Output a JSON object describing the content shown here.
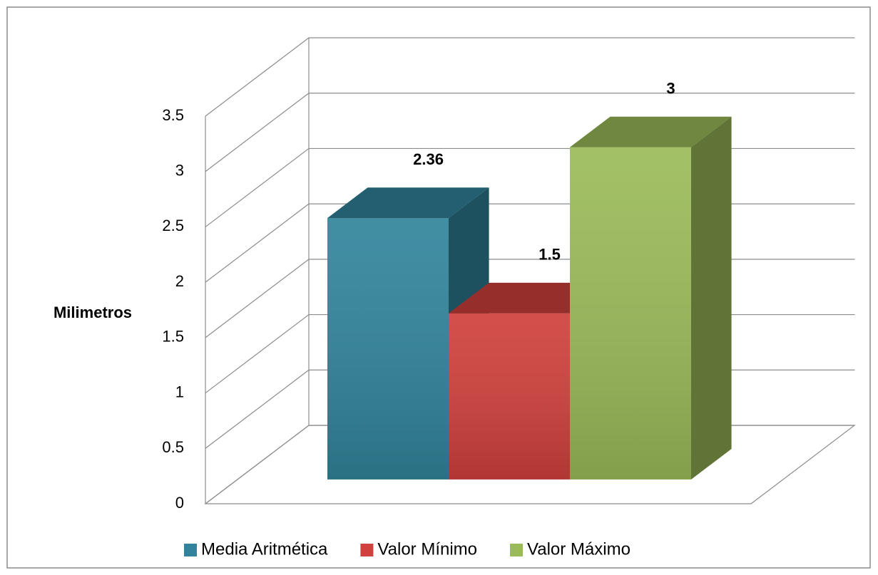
{
  "chart_data": {
    "type": "bar3d",
    "y_label": "Milimetros",
    "categories": [
      null
    ],
    "series": [
      {
        "name": "Media Aritmética",
        "color": "#31849b",
        "values": [
          2.36
        ]
      },
      {
        "name": "Valor Mínimo",
        "color": "#d0403c",
        "values": [
          1.5
        ]
      },
      {
        "name": "Valor Máximo",
        "color": "#9bbb59",
        "values": [
          3
        ]
      }
    ],
    "ylim": [
      0,
      3.5
    ],
    "yticks": [
      0,
      0.5,
      1,
      1.5,
      2,
      2.5,
      3,
      3.5
    ],
    "grid": true,
    "legend": "bottom"
  }
}
